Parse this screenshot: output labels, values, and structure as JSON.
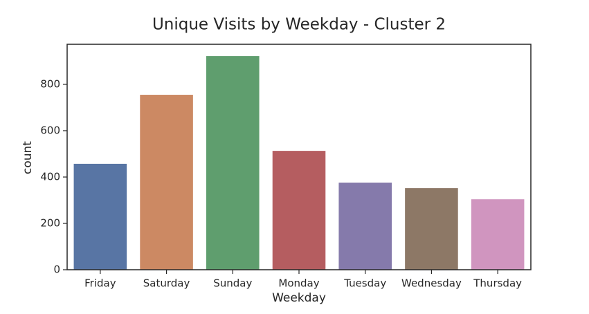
{
  "chart_data": {
    "type": "bar",
    "title": "Unique Visits by Weekday - Cluster 2",
    "x_label": "Weekday",
    "y_label": "count",
    "categories": [
      "Friday",
      "Saturday",
      "Sunday",
      "Monday",
      "Tuesday",
      "Wednesday",
      "Thursday"
    ],
    "values": [
      457,
      755,
      922,
      513,
      376,
      352,
      304
    ],
    "colors": [
      "#5875a4",
      "#cc8963",
      "#5f9e6e",
      "#b55d60",
      "#857aab",
      "#8d7866",
      "#d095bf"
    ],
    "ylim": [
      0,
      973
    ],
    "yticks": [
      0,
      200,
      400,
      600,
      800
    ],
    "grid": false
  }
}
